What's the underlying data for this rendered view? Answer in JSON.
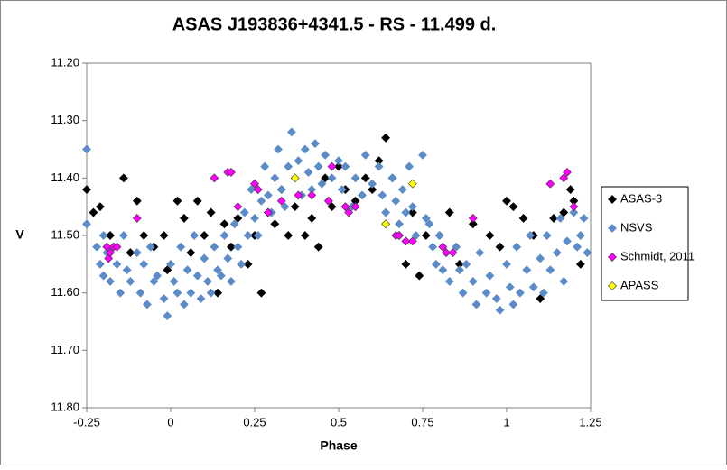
{
  "chart_data": {
    "type": "scatter",
    "title": "ASAS J193836+4341.5  - RS - 11.499 d.",
    "x_label": "Phase",
    "y_label": "V",
    "xlim": [
      -0.25,
      1.25
    ],
    "xticks": [
      -0.25,
      0,
      0.25,
      0.5,
      0.75,
      1,
      1.25
    ],
    "ylim": [
      11.2,
      11.8
    ],
    "y_inverted": true,
    "yticks": [
      {
        "value": 11.2,
        "label": "11.20"
      },
      {
        "value": 11.3,
        "label": "11.30"
      },
      {
        "value": 11.4,
        "label": "11.40"
      },
      {
        "value": 11.5,
        "label": "11.50"
      },
      {
        "value": 11.6,
        "label": "11.60"
      },
      {
        "value": 11.7,
        "label": "11.70"
      },
      {
        "value": 11.8,
        "label": "11.80"
      }
    ],
    "grid": false,
    "legend": "right",
    "series": [
      {
        "name": "ASAS-3",
        "color": "#000000",
        "x": [
          -0.25,
          -0.23,
          -0.21,
          -0.18,
          -0.14,
          -0.12,
          -0.1,
          -0.08,
          -0.05,
          -0.02,
          -0.01,
          0.02,
          0.04,
          0.06,
          0.08,
          0.1,
          0.12,
          0.14,
          0.16,
          0.18,
          0.2,
          0.23,
          0.25,
          0.27,
          0.29,
          0.31,
          0.33,
          0.35,
          0.37,
          0.4,
          0.42,
          0.44,
          0.46,
          0.48,
          0.5,
          0.52,
          0.55,
          0.58,
          0.6,
          0.62,
          0.64,
          0.66,
          0.68,
          0.7,
          0.72,
          0.74,
          0.76,
          0.8,
          0.83,
          0.86,
          0.9,
          0.95,
          0.98,
          1,
          1.02,
          1.05,
          1.08,
          1.1,
          1.14,
          1.17,
          1.19,
          1.2,
          1.22
        ],
        "values": [
          11.42,
          11.46,
          11.45,
          11.5,
          11.4,
          11.53,
          11.44,
          11.5,
          11.52,
          11.5,
          11.56,
          11.44,
          11.47,
          11.53,
          11.44,
          11.5,
          11.46,
          11.6,
          11.48,
          11.52,
          11.47,
          11.55,
          11.5,
          11.6,
          11.46,
          11.48,
          11.42,
          11.5,
          11.45,
          11.5,
          11.47,
          11.52,
          11.4,
          11.45,
          11.38,
          11.42,
          11.44,
          11.4,
          11.42,
          11.37,
          11.33,
          11.4,
          11.5,
          11.55,
          11.46,
          11.57,
          11.5,
          11.5,
          11.46,
          11.55,
          11.48,
          11.5,
          11.52,
          11.44,
          11.45,
          11.47,
          11.5,
          11.61,
          11.47,
          11.46,
          11.42,
          11.44,
          11.55
        ]
      },
      {
        "name": "NSVS",
        "color": "#5b8cc8",
        "x": [
          -0.25,
          -0.25,
          -0.22,
          -0.21,
          -0.2,
          -0.2,
          -0.19,
          -0.18,
          -0.17,
          -0.16,
          -0.15,
          -0.14,
          -0.13,
          -0.12,
          -0.1,
          -0.09,
          -0.08,
          -0.07,
          -0.06,
          -0.05,
          -0.04,
          -0.02,
          -0.01,
          0,
          0.01,
          0.02,
          0.03,
          0.04,
          0.05,
          0.06,
          0.07,
          0.08,
          0.09,
          0.1,
          0.11,
          0.12,
          0.13,
          0.14,
          0.15,
          0.16,
          0.17,
          0.18,
          0.19,
          0.2,
          0.21,
          0.22,
          0.23,
          0.24,
          0.25,
          0.26,
          0.27,
          0.28,
          0.29,
          0.3,
          0.31,
          0.32,
          0.33,
          0.34,
          0.35,
          0.36,
          0.37,
          0.38,
          0.39,
          0.4,
          0.41,
          0.42,
          0.43,
          0.44,
          0.45,
          0.46,
          0.47,
          0.48,
          0.5,
          0.51,
          0.52,
          0.54,
          0.55,
          0.57,
          0.58,
          0.6,
          0.62,
          0.63,
          0.64,
          0.66,
          0.67,
          0.68,
          0.69,
          0.7,
          0.71,
          0.72,
          0.73,
          0.75,
          0.76,
          0.77,
          0.78,
          0.79,
          0.8,
          0.81,
          0.82,
          0.83,
          0.85,
          0.86,
          0.87,
          0.88,
          0.9,
          0.91,
          0.92,
          0.94,
          0.95,
          0.97,
          0.98,
          1,
          1.01,
          1.02,
          1.03,
          1.04,
          1.06,
          1.07,
          1.08,
          1.1,
          1.11,
          1.12,
          1.13,
          1.15,
          1.16,
          1.17,
          1.18,
          1.2,
          1.21,
          1.22,
          1.23,
          1.24
        ],
        "values": [
          11.35,
          11.48,
          11.52,
          11.55,
          11.5,
          11.57,
          11.53,
          11.58,
          11.52,
          11.55,
          11.6,
          11.5,
          11.56,
          11.58,
          11.53,
          11.6,
          11.55,
          11.62,
          11.52,
          11.58,
          11.57,
          11.61,
          11.64,
          11.55,
          11.58,
          11.6,
          11.52,
          11.62,
          11.56,
          11.6,
          11.5,
          11.57,
          11.61,
          11.54,
          11.58,
          11.6,
          11.52,
          11.56,
          11.57,
          11.5,
          11.54,
          11.58,
          11.48,
          11.52,
          11.55,
          11.46,
          11.5,
          11.42,
          11.47,
          11.5,
          11.44,
          11.38,
          11.43,
          11.46,
          11.4,
          11.35,
          11.42,
          11.45,
          11.38,
          11.32,
          11.4,
          11.37,
          11.43,
          11.35,
          11.39,
          11.42,
          11.34,
          11.38,
          11.41,
          11.36,
          11.44,
          11.4,
          11.37,
          11.42,
          11.38,
          11.45,
          11.4,
          11.43,
          11.36,
          11.41,
          11.38,
          11.43,
          11.46,
          11.4,
          11.44,
          11.48,
          11.42,
          11.46,
          11.38,
          11.45,
          11.5,
          11.36,
          11.47,
          11.48,
          11.52,
          11.55,
          11.5,
          11.56,
          11.53,
          11.58,
          11.52,
          11.56,
          11.6,
          11.55,
          11.58,
          11.62,
          11.53,
          11.6,
          11.57,
          11.61,
          11.63,
          11.55,
          11.59,
          11.62,
          11.52,
          11.6,
          11.56,
          11.5,
          11.59,
          11.54,
          11.6,
          11.5,
          11.56,
          11.53,
          11.47,
          11.58,
          11.51,
          11.46,
          11.52,
          11.5,
          11.47,
          11.53
        ]
      },
      {
        "name": "Schmidt, 2011",
        "color": "#ff00ff",
        "x": [
          -0.19,
          -0.185,
          -0.18,
          -0.17,
          -0.16,
          -0.1,
          0.13,
          0.17,
          0.18,
          0.2,
          0.25,
          0.26,
          0.29,
          0.33,
          0.38,
          0.42,
          0.47,
          0.48,
          0.52,
          0.53,
          0.55,
          0.67,
          0.68,
          0.7,
          0.72,
          0.81,
          0.82,
          0.84,
          0.9,
          1.13,
          1.17,
          1.18,
          1.2
        ],
        "values": [
          11.52,
          11.54,
          11.53,
          11.52,
          11.52,
          11.47,
          11.4,
          11.39,
          11.39,
          11.45,
          11.41,
          11.42,
          11.46,
          11.44,
          11.43,
          11.43,
          11.44,
          11.38,
          11.45,
          11.46,
          11.45,
          11.5,
          11.5,
          11.51,
          11.51,
          11.52,
          11.53,
          11.53,
          11.47,
          11.41,
          11.4,
          11.39,
          11.45
        ]
      },
      {
        "name": "APASS",
        "color": "#ffff00",
        "x": [
          0.37,
          0.64,
          0.72
        ],
        "values": [
          11.4,
          11.48,
          11.41
        ]
      }
    ]
  }
}
